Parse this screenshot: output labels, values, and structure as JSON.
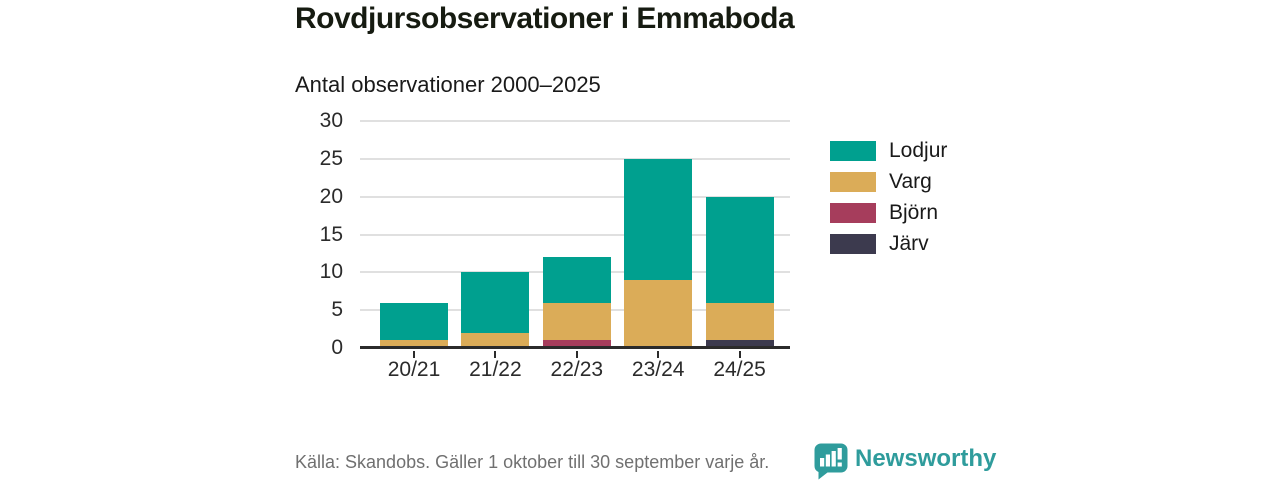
{
  "header": {
    "title": "Rovdjursobservationer i Emmaboda",
    "subtitle": "Antal observationer 2000–2025"
  },
  "chart_data": {
    "type": "bar",
    "stacked": true,
    "title": "Antal observationer 2000–2025",
    "categories": [
      "20/21",
      "21/22",
      "22/23",
      "23/24",
      "24/25"
    ],
    "series": [
      {
        "name": "Lodjur",
        "color": "#00A08F",
        "values": [
          5,
          8,
          6,
          16,
          14
        ]
      },
      {
        "name": "Varg",
        "color": "#DBAC58",
        "values": [
          1,
          2,
          5,
          9,
          5
        ]
      },
      {
        "name": "Björn",
        "color": "#A63D5C",
        "values": [
          0,
          0,
          1,
          0,
          0
        ]
      },
      {
        "name": "Järv",
        "color": "#3C3A4E",
        "values": [
          0,
          0,
          0,
          0,
          1
        ]
      }
    ],
    "stack_order_bottom_to_top": [
      "Järv",
      "Björn",
      "Varg",
      "Lodjur"
    ],
    "totals": [
      6,
      10,
      12,
      25,
      20
    ],
    "xlabel": "",
    "ylabel": "",
    "ylim": [
      0,
      30
    ],
    "yticks": [
      0,
      5,
      10,
      15,
      20,
      25,
      30
    ],
    "grid": true,
    "legend_position": "right"
  },
  "footer": {
    "source": "Källa: Skandobs. Gäller 1 oktober till 30 september varje år.",
    "brand": "Newsworthy",
    "brand_color": "#2F9C9C"
  }
}
